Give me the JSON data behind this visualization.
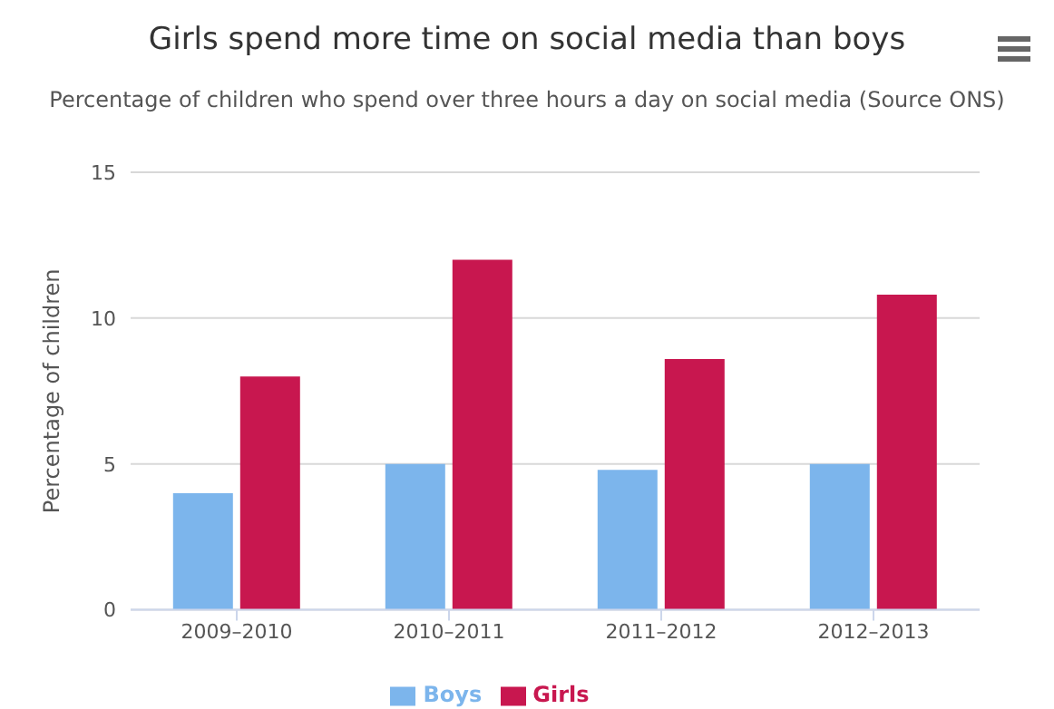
{
  "chart_data": {
    "type": "bar",
    "title": "Girls spend more time on social media than boys",
    "subtitle": "Percentage of children who spend over three hours a day on social media (Source ONS)",
    "ylabel": "Percentage of children",
    "categories": [
      "2009–2010",
      "2010–2011",
      "2011–2012",
      "2012–2013"
    ],
    "series": [
      {
        "name": "Boys",
        "color": "#7cb5ec",
        "values": [
          4,
          5,
          4.8,
          5
        ]
      },
      {
        "name": "Girls",
        "color": "#c8174f",
        "values": [
          8,
          12,
          8.6,
          10.8
        ]
      }
    ],
    "ylim": [
      0,
      15
    ],
    "yticks": [
      0,
      5,
      10,
      15
    ],
    "grid": "y",
    "legend": "bottom"
  }
}
